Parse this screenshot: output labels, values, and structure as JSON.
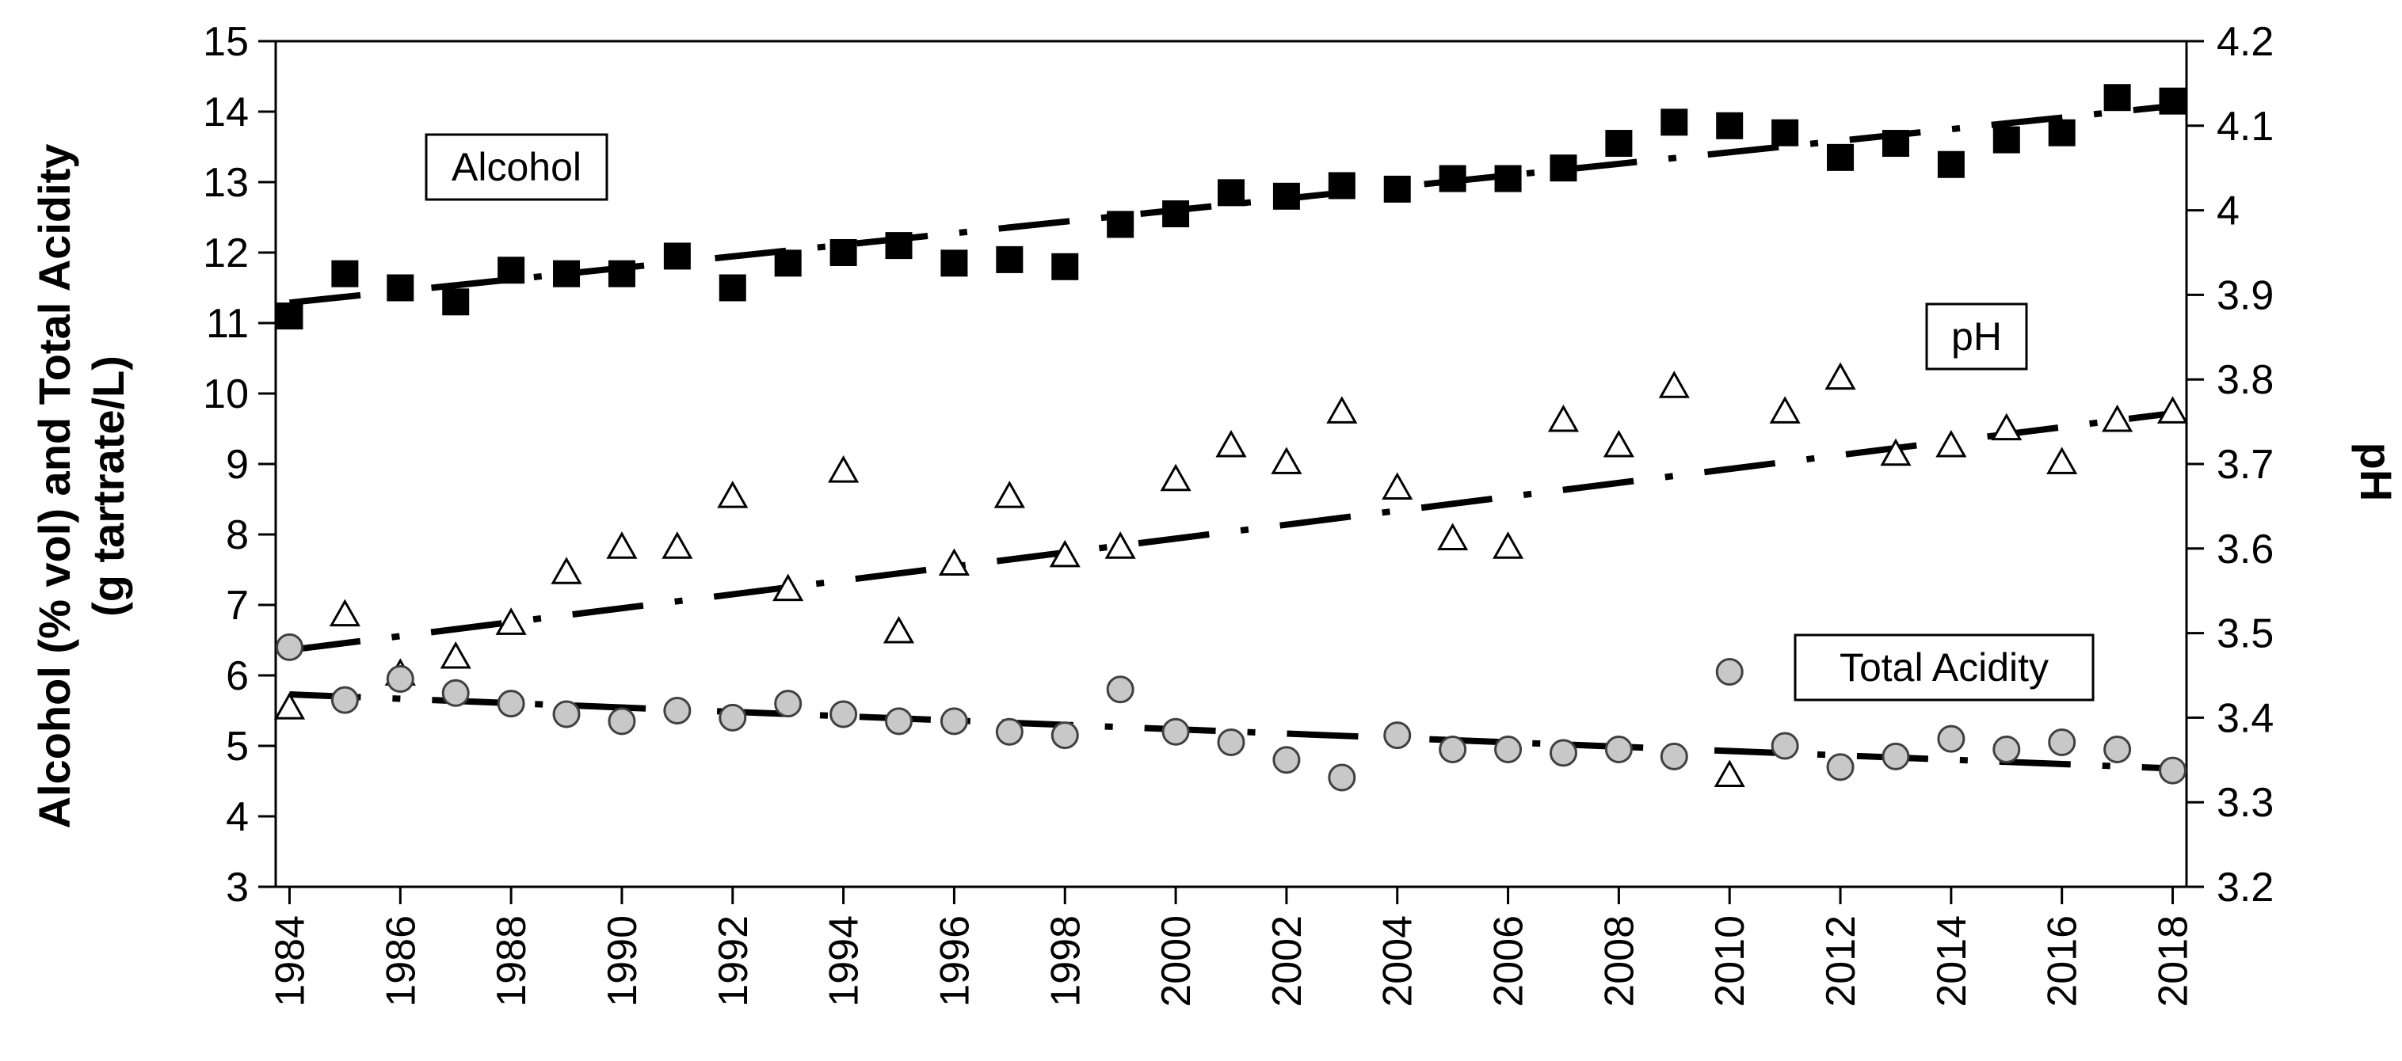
{
  "chart_data": {
    "type": "scatter",
    "title": "",
    "x": [
      1984,
      1985,
      1986,
      1987,
      1988,
      1989,
      1990,
      1991,
      1992,
      1993,
      1994,
      1995,
      1996,
      1997,
      1998,
      1999,
      2000,
      2001,
      2002,
      2003,
      2004,
      2005,
      2006,
      2007,
      2008,
      2009,
      2010,
      2011,
      2012,
      2013,
      2014,
      2015,
      2016,
      2017,
      2018
    ],
    "xlim": [
      1983.75,
      2018.25
    ],
    "xticks": [
      "1984",
      "1986",
      "1988",
      "1990",
      "1992",
      "1994",
      "1996",
      "1998",
      "2000",
      "2002",
      "2004",
      "2006",
      "2008",
      "2010",
      "2012",
      "2014",
      "2016",
      "2018"
    ],
    "ylabel": "Alcohol (% vol) and Total Acidity (g tartrate/L)",
    "ylim": [
      3,
      15
    ],
    "yticks": [
      "3",
      "4",
      "5",
      "6",
      "7",
      "8",
      "9",
      "10",
      "11",
      "12",
      "13",
      "14",
      "15"
    ],
    "y2label": "pH",
    "y2lim": [
      3.2,
      4.2
    ],
    "y2ticks": [
      "3.2",
      "3.3",
      "3.4",
      "3.5",
      "3.6",
      "3.7",
      "3.8",
      "3.9",
      "4",
      "4.1",
      "4.2"
    ],
    "grid": false,
    "series": [
      {
        "marker": "square-filled",
        "axis": "left",
        "values": [
          11.1,
          11.7,
          11.5,
          11.3,
          11.75,
          11.7,
          11.7,
          11.95,
          11.5,
          11.85,
          12.0,
          12.1,
          11.85,
          11.9,
          11.8,
          12.4,
          12.55,
          12.85,
          12.8,
          12.95,
          12.9,
          13.05,
          13.05,
          13.2,
          13.55,
          13.85,
          13.8,
          13.7,
          13.35,
          13.55,
          13.25,
          13.6,
          13.7,
          14.2,
          14.15
        ],
        "trend": [
          11.29,
          14.08
        ]
      },
      {
        "marker": "triangle-open",
        "axis": "right",
        "values": [
          3.41,
          3.52,
          3.45,
          3.47,
          3.51,
          3.57,
          3.6,
          3.6,
          3.66,
          3.55,
          3.69,
          3.5,
          3.58,
          3.66,
          3.59,
          3.6,
          3.68,
          3.72,
          3.7,
          3.76,
          3.67,
          3.61,
          3.6,
          3.75,
          3.72,
          3.79,
          3.33,
          3.76,
          3.8,
          3.71,
          3.72,
          3.74,
          3.7,
          3.75,
          3.76
        ],
        "trend": [
          3.48,
          3.76
        ]
      },
      {
        "marker": "circle-gray",
        "axis": "left",
        "values": [
          6.4,
          5.65,
          5.95,
          5.75,
          5.6,
          5.45,
          5.35,
          5.5,
          5.4,
          5.6,
          5.45,
          5.35,
          5.35,
          5.2,
          5.15,
          5.8,
          5.2,
          5.05,
          4.8,
          4.55,
          5.15,
          4.95,
          4.95,
          4.9,
          4.95,
          4.85,
          6.05,
          5.0,
          4.7,
          4.85,
          5.1,
          4.95,
          5.05,
          4.95,
          4.65
        ],
        "trend": [
          5.73,
          4.68
        ]
      }
    ],
    "annotations": [
      "Alcohol",
      "pH",
      "Total Acidity"
    ],
    "colors": {
      "alcohol": "#000000",
      "ph_fill": "#ffffff",
      "acidity_fill": "#c8c8c8",
      "acidity_edge": "#404040"
    }
  }
}
